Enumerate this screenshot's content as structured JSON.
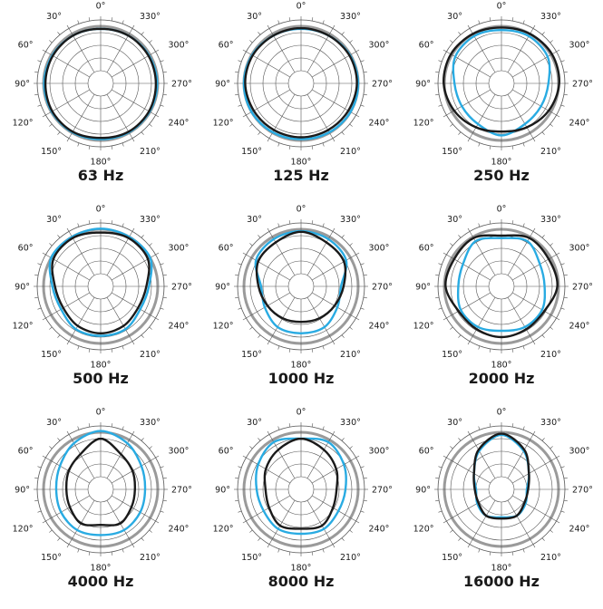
{
  "angle_labels": [
    "0°",
    "30°",
    "60°",
    "90°",
    "120°",
    "150°",
    "180°",
    "210°",
    "240°",
    "270°",
    "300°",
    "330°"
  ],
  "colors": {
    "black_curve": "#1a1a1a",
    "blue_curve": "#29abe2",
    "grey_ring": "#9a9a9a",
    "grid": "#555555"
  },
  "chart_data": [
    {
      "type": "polar",
      "title": "63 Hz",
      "angles_deg": [
        0,
        30,
        60,
        90,
        120,
        150,
        180,
        210,
        240,
        270,
        300,
        330
      ],
      "series": [
        {
          "values": [
            0.86,
            0.87,
            0.87,
            0.87,
            0.88,
            0.88,
            0.86,
            0.88,
            0.88,
            0.87,
            0.87,
            0.87
          ]
        },
        {
          "values": [
            0.86,
            0.87,
            0.88,
            0.89,
            0.89,
            0.89,
            0.88,
            0.89,
            0.89,
            0.89,
            0.88,
            0.87
          ]
        }
      ]
    },
    {
      "type": "polar",
      "title": "125 Hz",
      "angles_deg": [
        0,
        30,
        60,
        90,
        120,
        150,
        180,
        210,
        240,
        270,
        300,
        330
      ],
      "series": [
        {
          "values": [
            0.87,
            0.87,
            0.88,
            0.88,
            0.86,
            0.85,
            0.85,
            0.85,
            0.86,
            0.88,
            0.88,
            0.87
          ]
        },
        {
          "values": [
            0.86,
            0.87,
            0.89,
            0.9,
            0.9,
            0.89,
            0.88,
            0.89,
            0.9,
            0.9,
            0.89,
            0.87
          ]
        }
      ]
    },
    {
      "type": "polar",
      "title": "250 Hz",
      "angles_deg": [
        0,
        30,
        60,
        90,
        120,
        150,
        180,
        210,
        240,
        270,
        300,
        330
      ],
      "series": [
        {
          "values": [
            0.88,
            0.9,
            0.92,
            0.91,
            0.86,
            0.8,
            0.76,
            0.8,
            0.86,
            0.91,
            0.92,
            0.9
          ]
        },
        {
          "values": [
            0.84,
            0.86,
            0.84,
            0.74,
            0.72,
            0.74,
            0.82,
            0.74,
            0.72,
            0.74,
            0.84,
            0.86
          ]
        }
      ]
    },
    {
      "type": "polar",
      "title": "500 Hz",
      "angles_deg": [
        0,
        30,
        60,
        90,
        120,
        150,
        180,
        210,
        240,
        270,
        300,
        330
      ],
      "series": [
        {
          "values": [
            0.85,
            0.88,
            0.86,
            0.72,
            0.68,
            0.72,
            0.74,
            0.72,
            0.68,
            0.72,
            0.86,
            0.88
          ]
        },
        {
          "values": [
            0.91,
            0.9,
            0.9,
            0.76,
            0.72,
            0.78,
            0.78,
            0.78,
            0.72,
            0.76,
            0.9,
            0.9
          ]
        }
      ]
    },
    {
      "type": "polar",
      "title": "1000 Hz",
      "angles_deg": [
        0,
        30,
        60,
        90,
        120,
        150,
        180,
        210,
        240,
        270,
        300,
        330
      ],
      "series": [
        {
          "values": [
            0.86,
            0.8,
            0.78,
            0.67,
            0.61,
            0.58,
            0.56,
            0.58,
            0.61,
            0.67,
            0.78,
            0.8
          ]
        },
        {
          "values": [
            0.87,
            0.86,
            0.82,
            0.63,
            0.66,
            0.74,
            0.74,
            0.74,
            0.66,
            0.63,
            0.82,
            0.86
          ]
        }
      ]
    },
    {
      "type": "polar",
      "title": "2000 Hz",
      "angles_deg": [
        0,
        30,
        60,
        90,
        120,
        150,
        180,
        210,
        240,
        270,
        300,
        330
      ],
      "series": [
        {
          "values": [
            0.8,
            0.88,
            0.86,
            0.88,
            0.78,
            0.78,
            0.8,
            0.78,
            0.78,
            0.88,
            0.86,
            0.88
          ]
        },
        {
          "values": [
            0.76,
            0.82,
            0.7,
            0.68,
            0.74,
            0.74,
            0.7,
            0.74,
            0.74,
            0.68,
            0.7,
            0.82
          ]
        }
      ]
    },
    {
      "type": "polar",
      "title": "4000 Hz",
      "angles_deg": [
        0,
        30,
        60,
        90,
        120,
        150,
        180,
        210,
        240,
        270,
        300,
        330
      ],
      "series": [
        {
          "values": [
            0.8,
            0.64,
            0.58,
            0.54,
            0.56,
            0.62,
            0.56,
            0.62,
            0.56,
            0.54,
            0.58,
            0.64
          ]
        },
        {
          "values": [
            0.92,
            0.84,
            0.74,
            0.7,
            0.72,
            0.74,
            0.72,
            0.74,
            0.72,
            0.7,
            0.74,
            0.84
          ]
        }
      ]
    },
    {
      "type": "polar",
      "title": "8000 Hz",
      "angles_deg": [
        0,
        30,
        60,
        90,
        120,
        150,
        180,
        210,
        240,
        270,
        300,
        330
      ],
      "series": [
        {
          "values": [
            0.8,
            0.72,
            0.64,
            0.56,
            0.58,
            0.66,
            0.62,
            0.66,
            0.58,
            0.56,
            0.64,
            0.72
          ]
        },
        {
          "values": [
            0.8,
            0.86,
            0.78,
            0.7,
            0.68,
            0.72,
            0.7,
            0.72,
            0.68,
            0.7,
            0.78,
            0.86
          ]
        }
      ]
    },
    {
      "type": "polar",
      "title": "16000 Hz",
      "angles_deg": [
        0,
        30,
        60,
        90,
        120,
        150,
        180,
        210,
        240,
        270,
        300,
        330
      ],
      "series": [
        {
          "values": [
            0.88,
            0.72,
            0.5,
            0.42,
            0.42,
            0.48,
            0.46,
            0.48,
            0.42,
            0.42,
            0.5,
            0.72
          ]
        },
        {
          "values": [
            0.86,
            0.7,
            0.5,
            0.4,
            0.44,
            0.48,
            0.44,
            0.48,
            0.44,
            0.4,
            0.5,
            0.7
          ]
        }
      ]
    }
  ]
}
